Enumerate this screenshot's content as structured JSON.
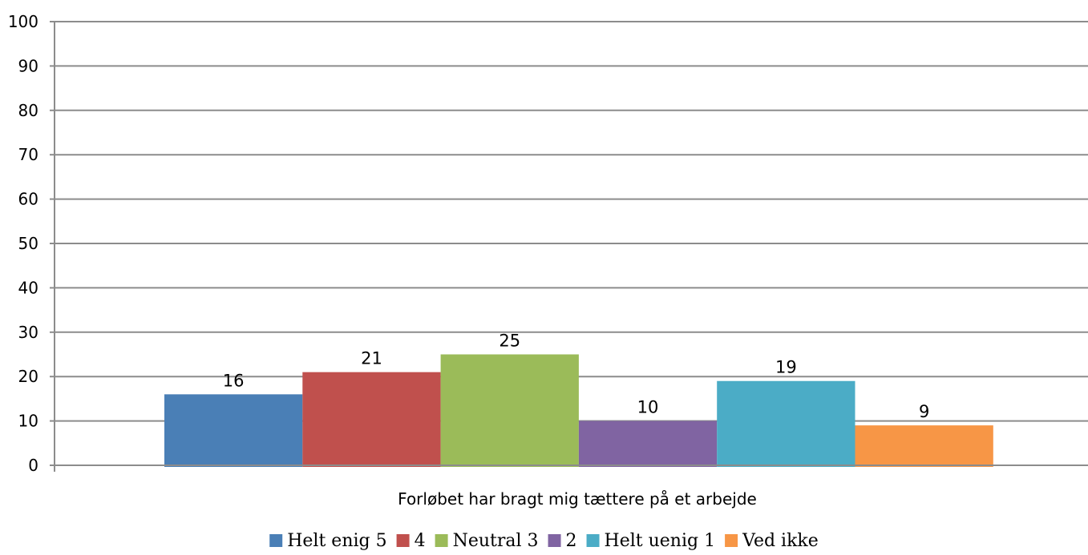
{
  "chart_data": {
    "type": "bar",
    "categories": [
      "Forløbet har bragt mig tættere på et arbejde"
    ],
    "series": [
      {
        "name": "Helt enig 5",
        "values": [
          16
        ],
        "color": "#4a7fb6"
      },
      {
        "name": "4",
        "values": [
          21
        ],
        "color": "#c0504d"
      },
      {
        "name": "Neutral 3",
        "values": [
          25
        ],
        "color": "#9bbb59"
      },
      {
        "name": "2",
        "values": [
          10
        ],
        "color": "#8064a2"
      },
      {
        "name": "Helt uenig 1",
        "values": [
          19
        ],
        "color": "#4bacc6"
      },
      {
        "name": "Ved ikke",
        "values": [
          9
        ],
        "color": "#f79646"
      }
    ],
    "ylim": [
      0,
      100
    ],
    "yticks": [
      0,
      10,
      20,
      30,
      40,
      50,
      60,
      70,
      80,
      90,
      100
    ],
    "grid": true,
    "legend_position": "bottom",
    "data_labels": [
      "16",
      "21",
      "25",
      "10",
      "19",
      "9"
    ]
  }
}
